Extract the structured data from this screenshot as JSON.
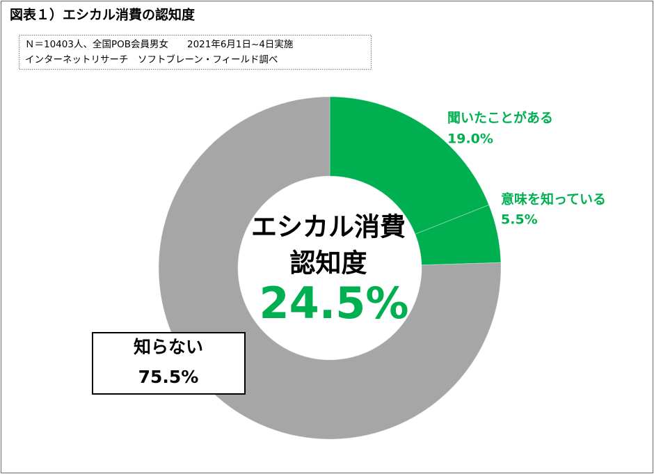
{
  "chart_data": {
    "type": "donut",
    "title": "図表１）エシカル消費の認知度",
    "notes": [
      "Ｎ＝10403人、全国POB会員男女　　2021年6月1日~4日実施",
      "インターネットリサーチ　ソフトブレーン・フィールド調べ"
    ],
    "center_text": [
      "エシカル消費",
      "認知度",
      "24.5%"
    ],
    "categories": [
      "聞いたことがある",
      "意味を知っている",
      "知らない"
    ],
    "values": [
      19.0,
      5.5,
      75.5
    ],
    "value_labels": [
      "19.0%",
      "5.5%",
      "75.5%"
    ],
    "colors": [
      "#00b050",
      "#00b050",
      "#a6a6a6"
    ]
  }
}
